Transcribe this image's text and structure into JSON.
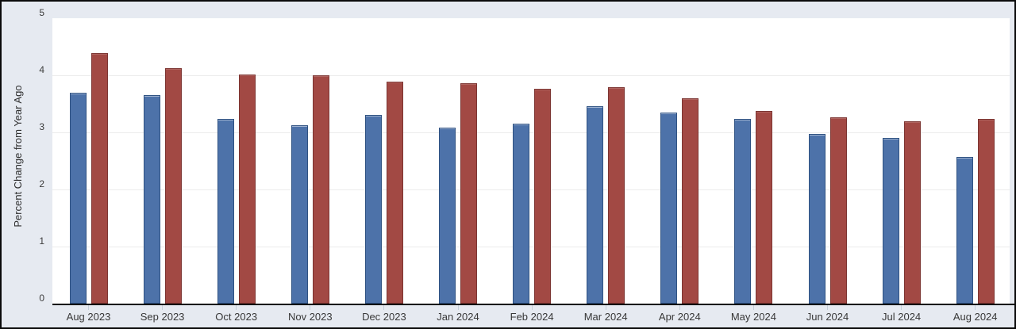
{
  "chart_data": {
    "type": "bar",
    "title": "",
    "xlabel": "",
    "ylabel": "Percent Change from Year Ago",
    "ylim": [
      0,
      5
    ],
    "yticks": [
      "0",
      "1",
      "2",
      "3",
      "4",
      "5"
    ],
    "grid": "horizontal-light",
    "legend": "none",
    "plot_background": "#ffffff",
    "margin_background": "#e6eaf1",
    "baseline_color": "#000000",
    "categories": [
      "Aug 2023",
      "Sep 2023",
      "Oct 2023",
      "Nov 2023",
      "Dec 2023",
      "Jan 2024",
      "Feb 2024",
      "Mar 2024",
      "Apr 2024",
      "May 2024",
      "Jun 2024",
      "Jul 2024",
      "Aug 2024"
    ],
    "series": [
      {
        "name": "blue-series",
        "color": "#4d72a9",
        "border_color": "#2f5282",
        "values": [
          3.7,
          3.65,
          3.23,
          3.12,
          3.3,
          3.09,
          3.15,
          3.46,
          3.35,
          3.23,
          2.97,
          2.9,
          2.57
        ]
      },
      {
        "name": "red-series",
        "color": "#a24944",
        "border_color": "#7c3532",
        "values": [
          4.39,
          4.13,
          4.01,
          4.0,
          3.89,
          3.86,
          3.76,
          3.79,
          3.6,
          3.37,
          3.26,
          3.2,
          3.23
        ]
      }
    ]
  }
}
